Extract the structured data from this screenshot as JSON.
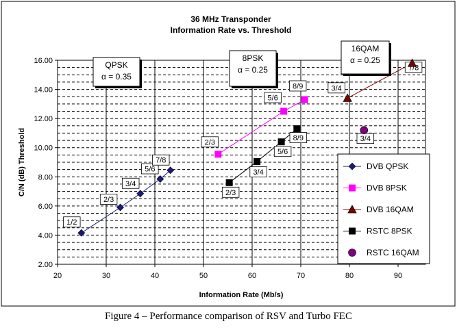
{
  "chart_data": {
    "type": "scatter",
    "title": "36 MHz Transponder",
    "subtitle": "Information Rate vs. Threshold",
    "xlabel": "Information Rate (Mb/s)",
    "ylabel": "C/N (dB) Threshold",
    "xlim": [
      20,
      95
    ],
    "ylim": [
      2.0,
      16.0
    ],
    "x_ticks": [
      "20",
      "30",
      "40",
      "50",
      "60",
      "70",
      "80",
      "90"
    ],
    "y_ticks": [
      "2.00",
      "4.00",
      "6.00",
      "8.00",
      "10.00",
      "12.00",
      "14.00",
      "16.00"
    ],
    "grid": true,
    "legend_position": "right",
    "series": [
      {
        "name": "DVB QPSK",
        "marker": "diamond",
        "color": "#1a1a80",
        "line": true,
        "points": [
          {
            "x": 24.9,
            "y": 4.15,
            "label": "1/2"
          },
          {
            "x": 32.9,
            "y": 5.9,
            "label": "2/3"
          },
          {
            "x": 37.0,
            "y": 6.85,
            "label": "3/4"
          },
          {
            "x": 41.1,
            "y": 7.85,
            "label": "5/6"
          },
          {
            "x": 43.2,
            "y": 8.45,
            "label": "7/8"
          }
        ]
      },
      {
        "name": "DVB 8PSK",
        "marker": "square",
        "color": "#ff00ff",
        "line": true,
        "points": [
          {
            "x": 53.0,
            "y": 9.55,
            "label": "2/3"
          },
          {
            "x": 66.5,
            "y": 12.5,
            "label": "5/6"
          },
          {
            "x": 70.8,
            "y": 13.3,
            "label": "8/9"
          }
        ]
      },
      {
        "name": "DVB 16QAM",
        "marker": "triangle",
        "color": "#800000",
        "line": true,
        "points": [
          {
            "x": 79.6,
            "y": 13.4,
            "label": "3/4"
          },
          {
            "x": 92.9,
            "y": 15.8,
            "label": "7/8"
          }
        ]
      },
      {
        "name": "RSTC 8PSK",
        "marker": "square",
        "color": "#000000",
        "line": true,
        "points": [
          {
            "x": 55.3,
            "y": 7.6,
            "label": "2/3"
          },
          {
            "x": 61.0,
            "y": 9.05,
            "label": "3/4"
          },
          {
            "x": 66.0,
            "y": 10.4,
            "label": "5/6"
          },
          {
            "x": 69.2,
            "y": 11.3,
            "label": "8/9"
          }
        ]
      },
      {
        "name": "RSTC 16QAM",
        "marker": "circle",
        "color": "#800080",
        "line": false,
        "points": [
          {
            "x": 83.0,
            "y": 11.2,
            "label": "3/4"
          }
        ]
      }
    ],
    "annotations": [
      {
        "text": "QPSK",
        "subtext": "α = 0.35"
      },
      {
        "text": "8PSK",
        "subtext": "α = 0.25"
      },
      {
        "text": "16QAM",
        "subtext": "α = 0.25"
      }
    ]
  },
  "caption": "Figure 4 – Performance comparison of RSV and Turbo FEC"
}
